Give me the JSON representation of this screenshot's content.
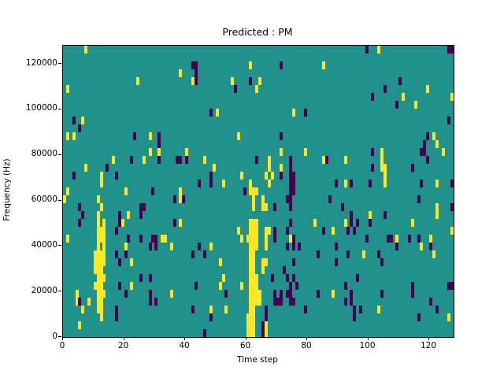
{
  "figure": {
    "title": "Predicted : PM",
    "xlabel": "Time step",
    "ylabel": "Frequency (Hz)"
  },
  "chart_data": {
    "type": "heatmap",
    "title": "Predicted : PM",
    "xlabel": "Time step",
    "ylabel": "Frequency (Hz)",
    "xlim": [
      0,
      128
    ],
    "ylim": [
      0,
      128000
    ],
    "x_ticks": [
      0,
      20,
      40,
      60,
      80,
      100,
      120
    ],
    "y_ticks": [
      0,
      20000,
      40000,
      60000,
      80000,
      100000,
      120000
    ],
    "grid": {
      "cols": 128,
      "rows": 37
    },
    "legend": "none",
    "colors": {
      "background_mid": "#21918c",
      "low_purple": "#440154",
      "high_yellow": "#fde725",
      "spine": "#000000"
    },
    "cells_yellow": [
      [
        7,
        36
      ],
      [
        103,
        36
      ],
      [
        61,
        34
      ],
      [
        85,
        34
      ],
      [
        38,
        33
      ],
      [
        42,
        32
      ],
      [
        24,
        32
      ],
      [
        55,
        32
      ],
      [
        64,
        32
      ],
      [
        1,
        31
      ],
      [
        63,
        31
      ],
      [
        119,
        31
      ],
      [
        111,
        30
      ],
      [
        127,
        30
      ],
      [
        115,
        29
      ],
      [
        50,
        28
      ],
      [
        75,
        28
      ],
      [
        6,
        27
      ],
      [
        1,
        25
      ],
      [
        3,
        25
      ],
      [
        28,
        25
      ],
      [
        57,
        25
      ],
      [
        121,
        25
      ],
      [
        122,
        24
      ],
      [
        28,
        23
      ],
      [
        31,
        23
      ],
      [
        40,
        23
      ],
      [
        71,
        23
      ],
      [
        79,
        23
      ],
      [
        104,
        23
      ],
      [
        124,
        23
      ],
      [
        16,
        22
      ],
      [
        26,
        22
      ],
      [
        46,
        22
      ],
      [
        67,
        22
      ],
      [
        85,
        22
      ],
      [
        92,
        22
      ],
      [
        104,
        22
      ],
      [
        7,
        21
      ],
      [
        49,
        21
      ],
      [
        67,
        21
      ],
      [
        71,
        21
      ],
      [
        104,
        21
      ],
      [
        105,
        21
      ],
      [
        12,
        20
      ],
      [
        58,
        20
      ],
      [
        66,
        20
      ],
      [
        68,
        20
      ],
      [
        105,
        20
      ],
      [
        12,
        19
      ],
      [
        52,
        19
      ],
      [
        61,
        19
      ],
      [
        67,
        19
      ],
      [
        92,
        19
      ],
      [
        105,
        19
      ],
      [
        122,
        19
      ],
      [
        1,
        18
      ],
      [
        20,
        18
      ],
      [
        38,
        18
      ],
      [
        61,
        18
      ],
      [
        62,
        18
      ],
      [
        63,
        18
      ],
      [
        0,
        17
      ],
      [
        11,
        17
      ],
      [
        38,
        17
      ],
      [
        62,
        17
      ],
      [
        65,
        17
      ],
      [
        12,
        16
      ],
      [
        62,
        16
      ],
      [
        65,
        16
      ],
      [
        66,
        16
      ],
      [
        122,
        16
      ],
      [
        11,
        15
      ],
      [
        21,
        15
      ],
      [
        100,
        15
      ],
      [
        122,
        15
      ],
      [
        11,
        14
      ],
      [
        13,
        14
      ],
      [
        19,
        14
      ],
      [
        38,
        14
      ],
      [
        61,
        14
      ],
      [
        62,
        14
      ],
      [
        63,
        14
      ],
      [
        82,
        14
      ],
      [
        92,
        14
      ],
      [
        114,
        14
      ],
      [
        11,
        13
      ],
      [
        12,
        13
      ],
      [
        13,
        13
      ],
      [
        57,
        13
      ],
      [
        61,
        13
      ],
      [
        62,
        13
      ],
      [
        63,
        13
      ],
      [
        66,
        13
      ],
      [
        67,
        13
      ],
      [
        88,
        13
      ],
      [
        127,
        13
      ],
      [
        1,
        12
      ],
      [
        11,
        12
      ],
      [
        12,
        12
      ],
      [
        13,
        12
      ],
      [
        21,
        12
      ],
      [
        32,
        12
      ],
      [
        33,
        12
      ],
      [
        58,
        12
      ],
      [
        60,
        12
      ],
      [
        61,
        12
      ],
      [
        62,
        12
      ],
      [
        63,
        12
      ],
      [
        66,
        12
      ],
      [
        74,
        12
      ],
      [
        109,
        12
      ],
      [
        120,
        12
      ],
      [
        11,
        11
      ],
      [
        13,
        11
      ],
      [
        20,
        11
      ],
      [
        35,
        11
      ],
      [
        48,
        11
      ],
      [
        61,
        11
      ],
      [
        62,
        11
      ],
      [
        63,
        11
      ],
      [
        66,
        11
      ],
      [
        117,
        11
      ],
      [
        10,
        10
      ],
      [
        11,
        10
      ],
      [
        12,
        10
      ],
      [
        13,
        10
      ],
      [
        61,
        10
      ],
      [
        62,
        10
      ],
      [
        98,
        10
      ],
      [
        121,
        10
      ],
      [
        10,
        9
      ],
      [
        11,
        9
      ],
      [
        12,
        9
      ],
      [
        13,
        9
      ],
      [
        22,
        9
      ],
      [
        51,
        9
      ],
      [
        61,
        9
      ],
      [
        62,
        9
      ],
      [
        65,
        9
      ],
      [
        66,
        9
      ],
      [
        10,
        8
      ],
      [
        11,
        8
      ],
      [
        12,
        8
      ],
      [
        61,
        8
      ],
      [
        62,
        8
      ],
      [
        65,
        8
      ],
      [
        11,
        7
      ],
      [
        12,
        7
      ],
      [
        13,
        7
      ],
      [
        52,
        7
      ],
      [
        61,
        7
      ],
      [
        62,
        7
      ],
      [
        63,
        7
      ],
      [
        10,
        6
      ],
      [
        11,
        6
      ],
      [
        12,
        6
      ],
      [
        22,
        6
      ],
      [
        51,
        6
      ],
      [
        58,
        6
      ],
      [
        61,
        6
      ],
      [
        62,
        6
      ],
      [
        63,
        6
      ],
      [
        4,
        5
      ],
      [
        11,
        5
      ],
      [
        12,
        5
      ],
      [
        13,
        5
      ],
      [
        35,
        5
      ],
      [
        61,
        5
      ],
      [
        62,
        5
      ],
      [
        63,
        5
      ],
      [
        64,
        5
      ],
      [
        88,
        5
      ],
      [
        4,
        4
      ],
      [
        8,
        4
      ],
      [
        11,
        4
      ],
      [
        12,
        4
      ],
      [
        61,
        4
      ],
      [
        62,
        4
      ],
      [
        63,
        4
      ],
      [
        64,
        4
      ],
      [
        6,
        3
      ],
      [
        11,
        3
      ],
      [
        12,
        3
      ],
      [
        48,
        3
      ],
      [
        53,
        3
      ],
      [
        61,
        3
      ],
      [
        62,
        3
      ],
      [
        103,
        3
      ],
      [
        12,
        2
      ],
      [
        60,
        2
      ],
      [
        61,
        2
      ],
      [
        62,
        2
      ],
      [
        126,
        2
      ],
      [
        5,
        1
      ],
      [
        60,
        1
      ],
      [
        61,
        1
      ],
      [
        62,
        1
      ],
      [
        66,
        1
      ],
      [
        60,
        0
      ],
      [
        61,
        0
      ],
      [
        62,
        0
      ],
      [
        66,
        0
      ]
    ],
    "cells_purple": [
      [
        99,
        36
      ],
      [
        126,
        36
      ],
      [
        127,
        36
      ],
      [
        42,
        34
      ],
      [
        43,
        34
      ],
      [
        71,
        34
      ],
      [
        43,
        33
      ],
      [
        43,
        32
      ],
      [
        61,
        32
      ],
      [
        110,
        32
      ],
      [
        56,
        31
      ],
      [
        105,
        31
      ],
      [
        101,
        30
      ],
      [
        109,
        29
      ],
      [
        48,
        28
      ],
      [
        79,
        28
      ],
      [
        3,
        27
      ],
      [
        126,
        27
      ],
      [
        5,
        26
      ],
      [
        23,
        25
      ],
      [
        31,
        25
      ],
      [
        71,
        25
      ],
      [
        119,
        25
      ],
      [
        31,
        24
      ],
      [
        118,
        24
      ],
      [
        101,
        23
      ],
      [
        117,
        23
      ],
      [
        118,
        23
      ],
      [
        22,
        22
      ],
      [
        31,
        22
      ],
      [
        37,
        22
      ],
      [
        38,
        22
      ],
      [
        40,
        22
      ],
      [
        63,
        22
      ],
      [
        74,
        22
      ],
      [
        86,
        22
      ],
      [
        119,
        22
      ],
      [
        14,
        21
      ],
      [
        74,
        21
      ],
      [
        101,
        21
      ],
      [
        114,
        21
      ],
      [
        3,
        20
      ],
      [
        17,
        20
      ],
      [
        48,
        20
      ],
      [
        71,
        20
      ],
      [
        74,
        20
      ],
      [
        75,
        20
      ],
      [
        44,
        19
      ],
      [
        48,
        19
      ],
      [
        74,
        19
      ],
      [
        75,
        19
      ],
      [
        89,
        19
      ],
      [
        94,
        19
      ],
      [
        100,
        19
      ],
      [
        117,
        19
      ],
      [
        127,
        19
      ],
      [
        29,
        18
      ],
      [
        59,
        18
      ],
      [
        74,
        18
      ],
      [
        75,
        18
      ],
      [
        36,
        17
      ],
      [
        39,
        17
      ],
      [
        73,
        17
      ],
      [
        74,
        17
      ],
      [
        87,
        17
      ],
      [
        116,
        17
      ],
      [
        5,
        16
      ],
      [
        25,
        16
      ],
      [
        26,
        16
      ],
      [
        69,
        16
      ],
      [
        74,
        16
      ],
      [
        91,
        16
      ],
      [
        127,
        16
      ],
      [
        6,
        15
      ],
      [
        18,
        15
      ],
      [
        25,
        15
      ],
      [
        94,
        15
      ],
      [
        105,
        15
      ],
      [
        5,
        14
      ],
      [
        18,
        14
      ],
      [
        36,
        14
      ],
      [
        74,
        14
      ],
      [
        94,
        14
      ],
      [
        96,
        14
      ],
      [
        100,
        14
      ],
      [
        17,
        13
      ],
      [
        69,
        13
      ],
      [
        73,
        13
      ],
      [
        85,
        13
      ],
      [
        93,
        13
      ],
      [
        95,
        13
      ],
      [
        21,
        12
      ],
      [
        25,
        12
      ],
      [
        29,
        12
      ],
      [
        30,
        12
      ],
      [
        69,
        12
      ],
      [
        75,
        12
      ],
      [
        99,
        12
      ],
      [
        106,
        12
      ],
      [
        107,
        12
      ],
      [
        113,
        12
      ],
      [
        116,
        12
      ],
      [
        28,
        11
      ],
      [
        30,
        11
      ],
      [
        44,
        11
      ],
      [
        73,
        11
      ],
      [
        75,
        11
      ],
      [
        77,
        11
      ],
      [
        89,
        11
      ],
      [
        109,
        11
      ],
      [
        120,
        11
      ],
      [
        17,
        10
      ],
      [
        20,
        10
      ],
      [
        42,
        10
      ],
      [
        46,
        10
      ],
      [
        83,
        10
      ],
      [
        93,
        10
      ],
      [
        103,
        10
      ],
      [
        18,
        9
      ],
      [
        75,
        9
      ],
      [
        89,
        9
      ],
      [
        104,
        9
      ],
      [
        72,
        8
      ],
      [
        25,
        7
      ],
      [
        28,
        7
      ],
      [
        68,
        7
      ],
      [
        73,
        7
      ],
      [
        75,
        7
      ],
      [
        96,
        7
      ],
      [
        18,
        6
      ],
      [
        43,
        6
      ],
      [
        74,
        6
      ],
      [
        76,
        6
      ],
      [
        92,
        6
      ],
      [
        114,
        6
      ],
      [
        126,
        6
      ],
      [
        127,
        6
      ],
      [
        20,
        5
      ],
      [
        28,
        5
      ],
      [
        53,
        5
      ],
      [
        69,
        5
      ],
      [
        71,
        5
      ],
      [
        73,
        5
      ],
      [
        74,
        5
      ],
      [
        83,
        5
      ],
      [
        94,
        5
      ],
      [
        104,
        5
      ],
      [
        114,
        5
      ],
      [
        5,
        4
      ],
      [
        28,
        4
      ],
      [
        30,
        4
      ],
      [
        69,
        4
      ],
      [
        70,
        4
      ],
      [
        71,
        4
      ],
      [
        74,
        4
      ],
      [
        75,
        4
      ],
      [
        92,
        4
      ],
      [
        94,
        4
      ],
      [
        120,
        4
      ],
      [
        17,
        3
      ],
      [
        42,
        3
      ],
      [
        66,
        3
      ],
      [
        79,
        3
      ],
      [
        95,
        3
      ],
      [
        97,
        3
      ],
      [
        122,
        3
      ],
      [
        17,
        2
      ],
      [
        48,
        2
      ],
      [
        66,
        2
      ],
      [
        95,
        2
      ],
      [
        116,
        2
      ],
      [
        65,
        1
      ],
      [
        46,
        0
      ],
      [
        65,
        0
      ]
    ]
  }
}
